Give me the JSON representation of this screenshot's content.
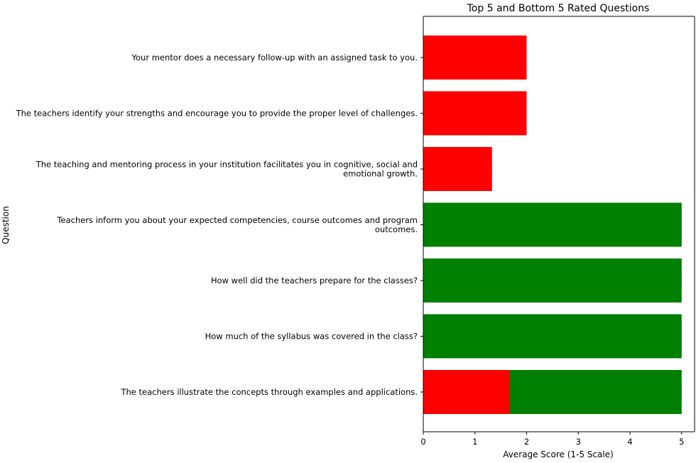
{
  "chart_data": {
    "type": "bar",
    "orientation": "horizontal",
    "title": "Top 5 and Bottom 5 Rated Questions",
    "xlabel": "Average Score (1-5 Scale)",
    "ylabel": "Question",
    "xlim": [
      0,
      5.25
    ],
    "xticks": [
      "0",
      "1",
      "2",
      "3",
      "4",
      "5"
    ],
    "grid": false,
    "colors": {
      "top": "#008000",
      "bottom": "#ff0000"
    },
    "bars": [
      {
        "category": "The teachers illustrate the concepts through examples and applications.",
        "value": 5.0,
        "group": "top"
      },
      {
        "category": "The teachers illustrate the concepts through examples and applications.",
        "value": 1.67,
        "group": "bottom"
      },
      {
        "category": "How much of the syllabus was covered in the class?",
        "value": 5.0,
        "group": "top"
      },
      {
        "category": "How well did the teachers prepare for the classes?",
        "value": 5.0,
        "group": "top"
      },
      {
        "category": "Teachers inform you about your expected competencies, course outcomes and program outcomes.",
        "value": 5.0,
        "group": "top"
      },
      {
        "category": "The teaching and mentoring process in your institution facilitates you in cognitive, social and emotional growth.",
        "value": 1.33,
        "group": "bottom"
      },
      {
        "category": "The teachers identify your strengths and encourage you to provide the proper level of challenges.",
        "value": 2.0,
        "group": "bottom"
      },
      {
        "category": "Your mentor does a necessary follow-up with an assigned task to you.",
        "value": 2.0,
        "group": "bottom"
      }
    ],
    "category_lines": [
      [
        "The teachers illustrate the concepts through examples and applications."
      ],
      [
        "How much of the syllabus was covered in the class?"
      ],
      [
        "How well did the teachers prepare for the classes?"
      ],
      [
        "Teachers inform you about your expected competencies, course outcomes and program",
        "outcomes."
      ],
      [
        "The teaching and mentoring process in your institution facilitates you in cognitive, social and",
        "emotional growth."
      ],
      [
        "The teachers identify your strengths and encourage you to provide the proper level of challenges."
      ],
      [
        "Your mentor does a necessary follow-up with an assigned task to you."
      ]
    ]
  }
}
